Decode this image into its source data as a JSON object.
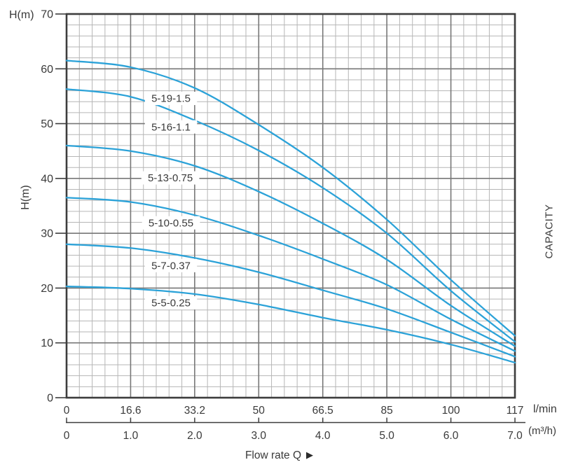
{
  "labels": {
    "h_top": "H(m)",
    "h_side": "H(m)",
    "capacity": "CAPACITY",
    "flow_rate": "Flow rate Q",
    "arrow": "▶"
  },
  "chart_data": {
    "type": "line",
    "ylabel": "H(m)",
    "xlabel": "Flow rate Q",
    "right_label": "CAPACITY",
    "ylim": [
      0,
      70
    ],
    "xlim_m3h": [
      0,
      7
    ],
    "y_ticks": [
      0,
      10,
      20,
      30,
      40,
      50,
      60,
      70
    ],
    "x_scales": [
      {
        "unit": "l/min",
        "labels": [
          "0",
          "16.6",
          "33.2",
          "50",
          "66.5",
          "85",
          "100",
          "117"
        ]
      },
      {
        "unit": "(m³/h)",
        "labels": [
          "0",
          "1.0",
          "2.0",
          "3.0",
          "4.0",
          "5.0",
          "6.0",
          "7.0"
        ]
      }
    ],
    "grid": {
      "minor_x_step_m3h": 0.2,
      "major_x_step_m3h": 1,
      "minor_y_step_m": 2,
      "major_y_step_m": 10,
      "visible": true
    },
    "legend_position": "on-curve-labels",
    "series": [
      {
        "name": "5-19-1.5",
        "x_m3h": [
          0,
          1,
          2,
          3,
          4,
          5,
          6,
          7
        ],
        "h_m": [
          61.5,
          60.3,
          56.5,
          49.8,
          42.0,
          32.5,
          21.5,
          11.3
        ],
        "label_pos": {
          "x_m3h": 1.63,
          "h_m": 54.6
        }
      },
      {
        "name": "5-16-1.1",
        "x_m3h": [
          0,
          1,
          2,
          3,
          4,
          5,
          6,
          7
        ],
        "h_m": [
          56.3,
          54.9,
          50.6,
          45.1,
          38.3,
          30.0,
          19.5,
          10.2
        ],
        "label_pos": {
          "x_m3h": 1.63,
          "h_m": 49.4
        }
      },
      {
        "name": "5-13-0.75",
        "x_m3h": [
          0,
          1,
          2,
          3,
          4,
          5,
          6,
          7
        ],
        "h_m": [
          46.0,
          45.0,
          42.3,
          37.6,
          31.8,
          25.2,
          16.8,
          9.4
        ],
        "label_pos": {
          "x_m3h": 1.62,
          "h_m": 40.1
        }
      },
      {
        "name": "5-10-0.55",
        "x_m3h": [
          0,
          1,
          2,
          3,
          4,
          5,
          6,
          7
        ],
        "h_m": [
          36.5,
          35.7,
          33.3,
          29.6,
          25.3,
          20.6,
          14.3,
          8.5
        ],
        "label_pos": {
          "x_m3h": 1.63,
          "h_m": 31.9
        }
      },
      {
        "name": "5-7-0.37",
        "x_m3h": [
          0,
          1,
          2,
          3,
          4,
          5,
          6,
          7
        ],
        "h_m": [
          28.0,
          27.3,
          25.5,
          22.9,
          19.6,
          16.2,
          11.9,
          7.5
        ],
        "label_pos": {
          "x_m3h": 1.63,
          "h_m": 24.1
        }
      },
      {
        "name": "5-5-0.25",
        "x_m3h": [
          0,
          1,
          2,
          3,
          4,
          5,
          6,
          7
        ],
        "h_m": [
          20.3,
          19.9,
          18.9,
          17.0,
          14.6,
          12.4,
          9.7,
          6.4
        ],
        "label_pos": {
          "x_m3h": 1.63,
          "h_m": 17.3
        }
      }
    ],
    "colors": {
      "curve": "#2ba2d8",
      "grid_minor": "#b6b6b6",
      "grid_major": "#777777",
      "frame": "#3d3d3d",
      "text": "#3a3a3a"
    }
  }
}
